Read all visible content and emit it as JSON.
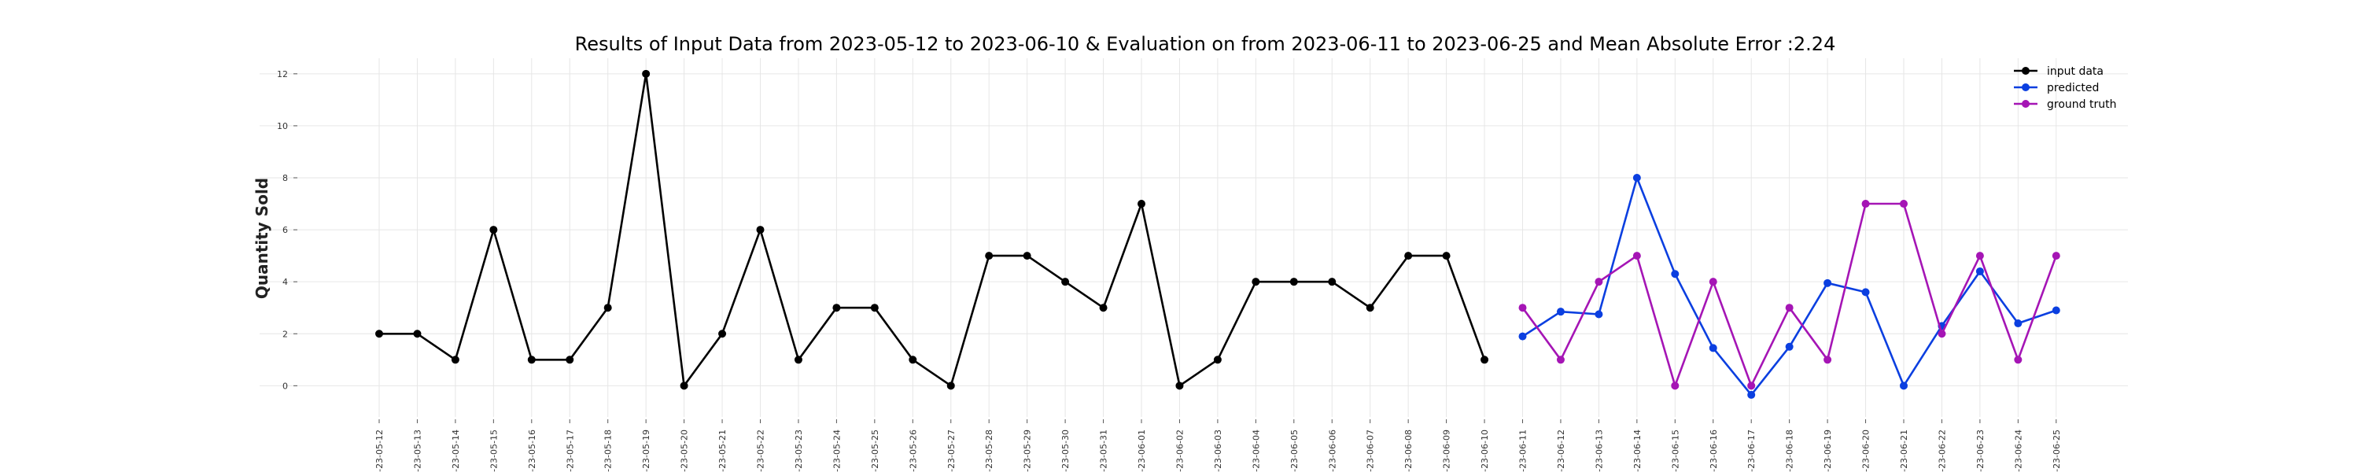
{
  "chart_data": {
    "type": "line",
    "title": "Results of Input Data from 2023-05-12 to 2023-06-10 & Evaluation on from 2023-06-11 to 2023-06-25 and Mean Absolute Error  :2.24",
    "xlabel": "",
    "ylabel": "Quantity Sold",
    "ylim": [
      -1.2,
      12.6
    ],
    "yticks": [
      0,
      2,
      4,
      6,
      8,
      10,
      12
    ],
    "grid": true,
    "legend_position": "top-right",
    "x": [
      "2023-05-12",
      "2023-05-13",
      "2023-05-14",
      "2023-05-15",
      "2023-05-16",
      "2023-05-17",
      "2023-05-18",
      "2023-05-19",
      "2023-05-20",
      "2023-05-21",
      "2023-05-22",
      "2023-05-23",
      "2023-05-24",
      "2023-05-25",
      "2023-05-26",
      "2023-05-27",
      "2023-05-28",
      "2023-05-29",
      "2023-05-30",
      "2023-05-31",
      "2023-06-01",
      "2023-06-02",
      "2023-06-03",
      "2023-06-04",
      "2023-06-05",
      "2023-06-06",
      "2023-06-07",
      "2023-06-08",
      "2023-06-09",
      "2023-06-10",
      "2023-06-11",
      "2023-06-12",
      "2023-06-13",
      "2023-06-14",
      "2023-06-15",
      "2023-06-16",
      "2023-06-17",
      "2023-06-18",
      "2023-06-19",
      "2023-06-20",
      "2023-06-21",
      "2023-06-22",
      "2023-06-23",
      "2023-06-24",
      "2023-06-25"
    ],
    "x_tick_labels": [
      "-23-05-12",
      "-23-05-13",
      "-23-05-14",
      "-23-05-15",
      "-23-05-16",
      "-23-05-17",
      "-23-05-18",
      "-23-05-19",
      "-23-05-20",
      "-23-05-21",
      "-23-05-22",
      "-23-05-23",
      "-23-05-24",
      "-23-05-25",
      "-23-05-26",
      "-23-05-27",
      "-23-05-28",
      "-23-05-29",
      "-23-05-30",
      "-23-05-31",
      "-23-06-01",
      "-23-06-02",
      "-23-06-03",
      "-23-06-04",
      "-23-06-05",
      "-23-06-06",
      "-23-06-07",
      "-23-06-08",
      "-23-06-09",
      "-23-06-10",
      "-23-06-11",
      "-23-06-12",
      "-23-06-13",
      "-23-06-14",
      "-23-06-15",
      "-23-06-16",
      "-23-06-17",
      "-23-06-18",
      "-23-06-19",
      "-23-06-20",
      "-23-06-21",
      "-23-06-22",
      "-23-06-23",
      "-23-06-24",
      "-23-06-25"
    ],
    "series": [
      {
        "name": "input data",
        "color": "#000000",
        "points": [
          [
            "2023-05-12",
            2
          ],
          [
            "2023-05-13",
            2
          ],
          [
            "2023-05-14",
            1
          ],
          [
            "2023-05-15",
            6
          ],
          [
            "2023-05-16",
            1
          ],
          [
            "2023-05-17",
            1
          ],
          [
            "2023-05-18",
            3
          ],
          [
            "2023-05-19",
            12
          ],
          [
            "2023-05-20",
            0
          ],
          [
            "2023-05-21",
            2
          ],
          [
            "2023-05-22",
            6
          ],
          [
            "2023-05-23",
            1
          ],
          [
            "2023-05-24",
            3
          ],
          [
            "2023-05-25",
            3
          ],
          [
            "2023-05-26",
            1
          ],
          [
            "2023-05-27",
            0
          ],
          [
            "2023-05-28",
            5
          ],
          [
            "2023-05-29",
            5
          ],
          [
            "2023-05-30",
            4
          ],
          [
            "2023-05-31",
            3
          ],
          [
            "2023-06-01",
            7
          ],
          [
            "2023-06-02",
            0
          ],
          [
            "2023-06-03",
            1
          ],
          [
            "2023-06-04",
            4
          ],
          [
            "2023-06-05",
            4
          ],
          [
            "2023-06-06",
            4
          ],
          [
            "2023-06-07",
            3
          ],
          [
            "2023-06-08",
            5
          ],
          [
            "2023-06-09",
            5
          ],
          [
            "2023-06-10",
            1
          ]
        ]
      },
      {
        "name": "predicted",
        "color": "#0b3fe0",
        "points": [
          [
            "2023-06-11",
            1.9
          ],
          [
            "2023-06-12",
            2.85
          ],
          [
            "2023-06-13",
            2.75
          ],
          [
            "2023-06-14",
            8
          ],
          [
            "2023-06-15",
            4.3
          ],
          [
            "2023-06-16",
            1.45
          ],
          [
            "2023-06-17",
            -0.35
          ],
          [
            "2023-06-18",
            1.5
          ],
          [
            "2023-06-19",
            3.95
          ],
          [
            "2023-06-20",
            3.6
          ],
          [
            "2023-06-21",
            0
          ],
          [
            "2023-06-22",
            2.3
          ],
          [
            "2023-06-23",
            4.4
          ],
          [
            "2023-06-24",
            2.4
          ],
          [
            "2023-06-25",
            2.9
          ]
        ]
      },
      {
        "name": "ground truth",
        "color": "#a515b5",
        "points": [
          [
            "2023-06-11",
            3
          ],
          [
            "2023-06-12",
            1
          ],
          [
            "2023-06-13",
            4
          ],
          [
            "2023-06-14",
            5
          ],
          [
            "2023-06-15",
            0
          ],
          [
            "2023-06-16",
            4
          ],
          [
            "2023-06-17",
            0
          ],
          [
            "2023-06-18",
            3
          ],
          [
            "2023-06-19",
            1
          ],
          [
            "2023-06-20",
            7
          ],
          [
            "2023-06-21",
            7
          ],
          [
            "2023-06-22",
            2
          ],
          [
            "2023-06-23",
            5
          ],
          [
            "2023-06-24",
            1
          ],
          [
            "2023-06-25",
            5
          ]
        ]
      }
    ]
  }
}
